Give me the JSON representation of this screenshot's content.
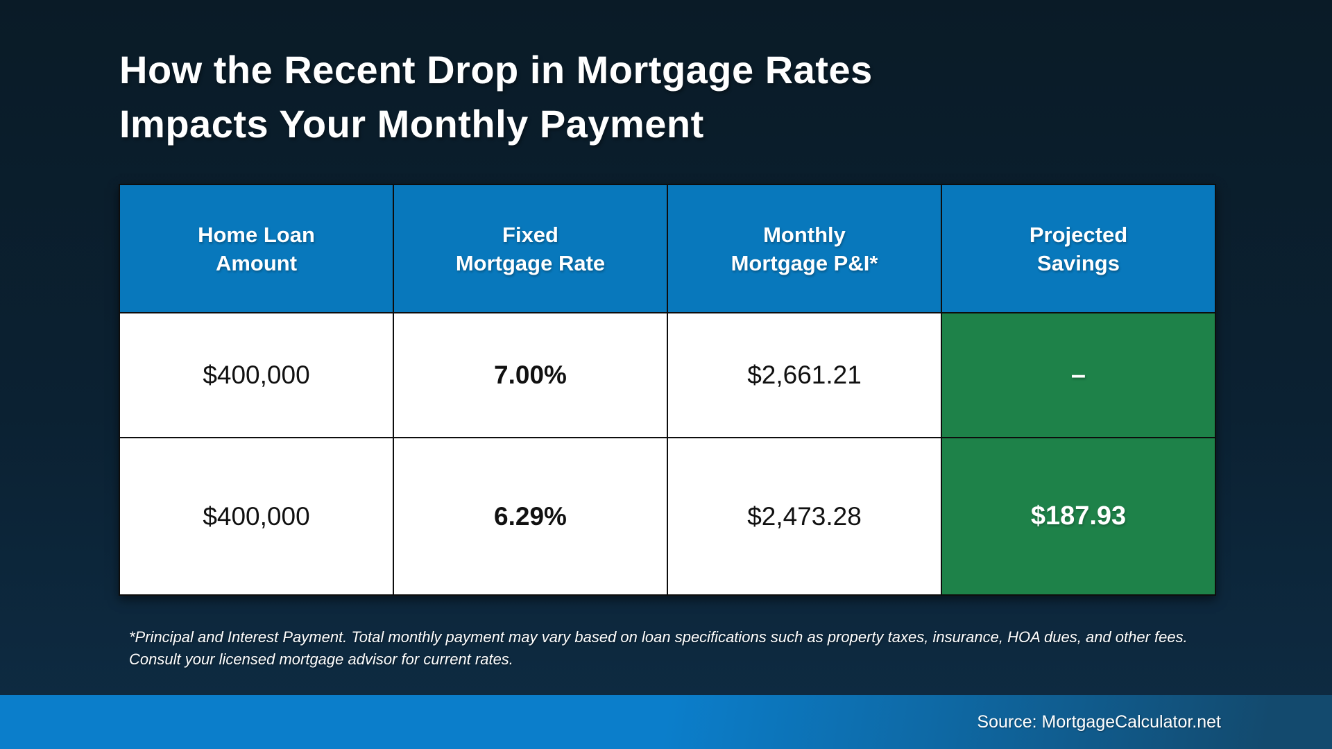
{
  "slide": {
    "title": [
      "How the Recent Drop in Mortgage Rates",
      "Impacts Your Monthly Payment"
    ],
    "footnote": [
      "*Principal and Interest Payment. Total monthly payment may vary based on loan specifications such as property taxes, insurance, HOA dues, and other fees.",
      "Consult your licensed mortgage advisor for current rates."
    ],
    "source": "Source: MortgageCalculator.net"
  },
  "table": {
    "headers": [
      {
        "line1": "Home Loan",
        "line2": "Amount"
      },
      {
        "line1": "Fixed",
        "line2": "Mortgage Rate"
      },
      {
        "line1": "Monthly",
        "line2": "Mortgage P&I*"
      },
      {
        "line1": "Projected",
        "line2": "Savings"
      }
    ]
  },
  "chart_data": {
    "type": "table",
    "title": "How the Recent Drop in Mortgage Rates Impacts Your Monthly Payment",
    "columns": [
      "Home Loan Amount",
      "Fixed Mortgage Rate",
      "Monthly Mortgage P&I*",
      "Projected Savings"
    ],
    "rows": [
      [
        "$400,000",
        "7.00%",
        "$2,661.21",
        "–"
      ],
      [
        "$400,000",
        "6.29%",
        "$2,473.28",
        "$187.93"
      ]
    ]
  },
  "colors": {
    "header_blue": "#0878bc",
    "savings_green": "#1e8249",
    "background_top": "#0a1b27",
    "background_bottom": "#0e2c44",
    "bottom_bar_left": "#0b7ecb",
    "bottom_bar_right": "#134a6e",
    "title_text": "#ffffff",
    "cell_text": "#111111"
  }
}
